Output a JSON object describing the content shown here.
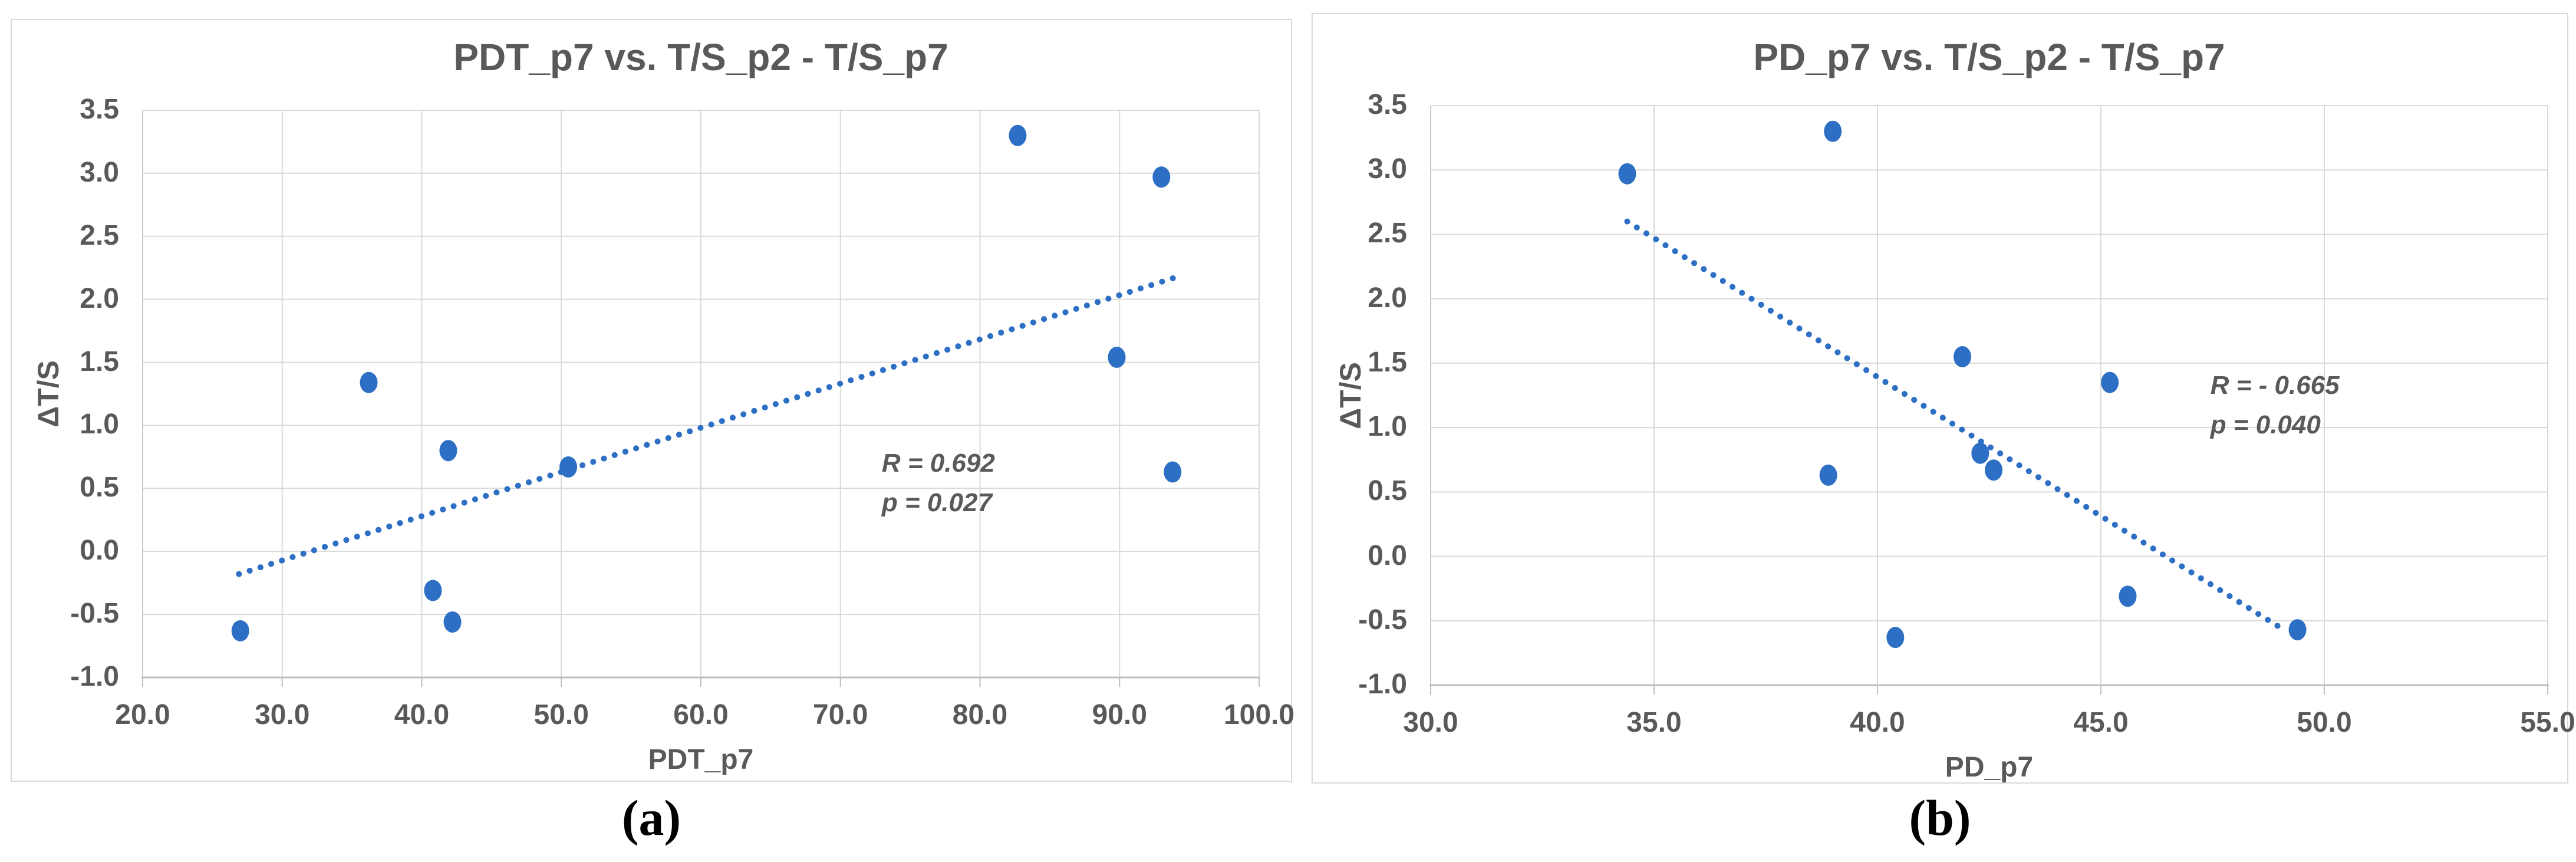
{
  "figure": {
    "background": "#FFFFFF",
    "captions": {
      "left": "(a)",
      "right": "(b)"
    }
  },
  "colors": {
    "marker": "#2D6FC4",
    "trendline": "#2D6FC4",
    "gridline": "#D9D9D9",
    "axis_line": "#BFBFBF",
    "y_axis_line": "#C9C9C9",
    "text": "#595959",
    "caption_text": "#000000",
    "panel_border": "#D9D9D9"
  },
  "chart_data": [
    {
      "type": "scatter",
      "title": "PDT_p7 vs. T/S_p2 - T/S_p7",
      "xlabel": "PDT_p7",
      "ylabel": "ΔT/S",
      "xlim": [
        20.0,
        100.0
      ],
      "ylim": [
        -1.0,
        3.5
      ],
      "grid": true,
      "legend": "none",
      "xticks": [
        20,
        30,
        40,
        50,
        60,
        70,
        80,
        90,
        100
      ],
      "xtick_labels": [
        "20.0",
        "30.0",
        "40.0",
        "50.0",
        "60.0",
        "70.0",
        "80.0",
        "90.0",
        "100.0"
      ],
      "yticks": [
        3.5,
        3.0,
        2.5,
        2.0,
        1.5,
        1.0,
        0.5,
        0.0,
        -0.5,
        -1.0
      ],
      "ytick_labels": [
        "3.5",
        "3.0",
        "2.5",
        "2.0",
        "1.5",
        "1.0",
        "0.5",
        "0.0",
        "-0.5",
        "-1.0"
      ],
      "points": [
        {
          "x": 27.0,
          "y": -0.63
        },
        {
          "x": 36.2,
          "y": 1.34
        },
        {
          "x": 40.8,
          "y": -0.31
        },
        {
          "x": 41.9,
          "y": 0.8
        },
        {
          "x": 42.2,
          "y": -0.56
        },
        {
          "x": 50.5,
          "y": 0.67
        },
        {
          "x": 82.7,
          "y": 3.3
        },
        {
          "x": 89.8,
          "y": 1.54
        },
        {
          "x": 93.0,
          "y": 2.97
        },
        {
          "x": 93.8,
          "y": 0.63
        }
      ],
      "trendline": {
        "style": "dotted",
        "x1": 26.9,
        "y1": -0.18,
        "x2": 93.9,
        "y2": 2.17
      },
      "annotation": {
        "lines": [
          "R = 0.692",
          "p = 0.027"
        ]
      }
    },
    {
      "type": "scatter",
      "title": "PD_p7 vs. T/S_p2 - T/S_p7",
      "xlabel": "PD_p7",
      "ylabel": "ΔT/S",
      "xlim": [
        30.0,
        55.0
      ],
      "ylim": [
        -1.0,
        3.5
      ],
      "grid": true,
      "legend": "none",
      "xticks": [
        30,
        35,
        40,
        45,
        50,
        55
      ],
      "xtick_labels": [
        "30.0",
        "35.0",
        "40.0",
        "45.0",
        "50.0",
        "55.0"
      ],
      "yticks": [
        3.5,
        3.0,
        2.5,
        2.0,
        1.5,
        1.0,
        0.5,
        0.0,
        -0.5,
        -1.0
      ],
      "ytick_labels": [
        "3.5",
        "3.0",
        "2.5",
        "2.0",
        "1.5",
        "1.0",
        "0.5",
        "0.0",
        "-0.5",
        "-1.0"
      ],
      "points": [
        {
          "x": 34.4,
          "y": 2.97
        },
        {
          "x": 38.9,
          "y": 0.63
        },
        {
          "x": 39.0,
          "y": 3.3
        },
        {
          "x": 40.4,
          "y": -0.63
        },
        {
          "x": 41.9,
          "y": 1.55
        },
        {
          "x": 42.3,
          "y": 0.8
        },
        {
          "x": 42.6,
          "y": 0.67
        },
        {
          "x": 45.2,
          "y": 1.35
        },
        {
          "x": 45.6,
          "y": -0.31
        },
        {
          "x": 49.4,
          "y": -0.57
        }
      ],
      "trendline": {
        "style": "dotted",
        "x1": 34.4,
        "y1": 2.6,
        "x2": 49.0,
        "y2": -0.55
      },
      "annotation": {
        "lines": [
          "R = - 0.665",
          "p = 0.040"
        ]
      }
    }
  ]
}
